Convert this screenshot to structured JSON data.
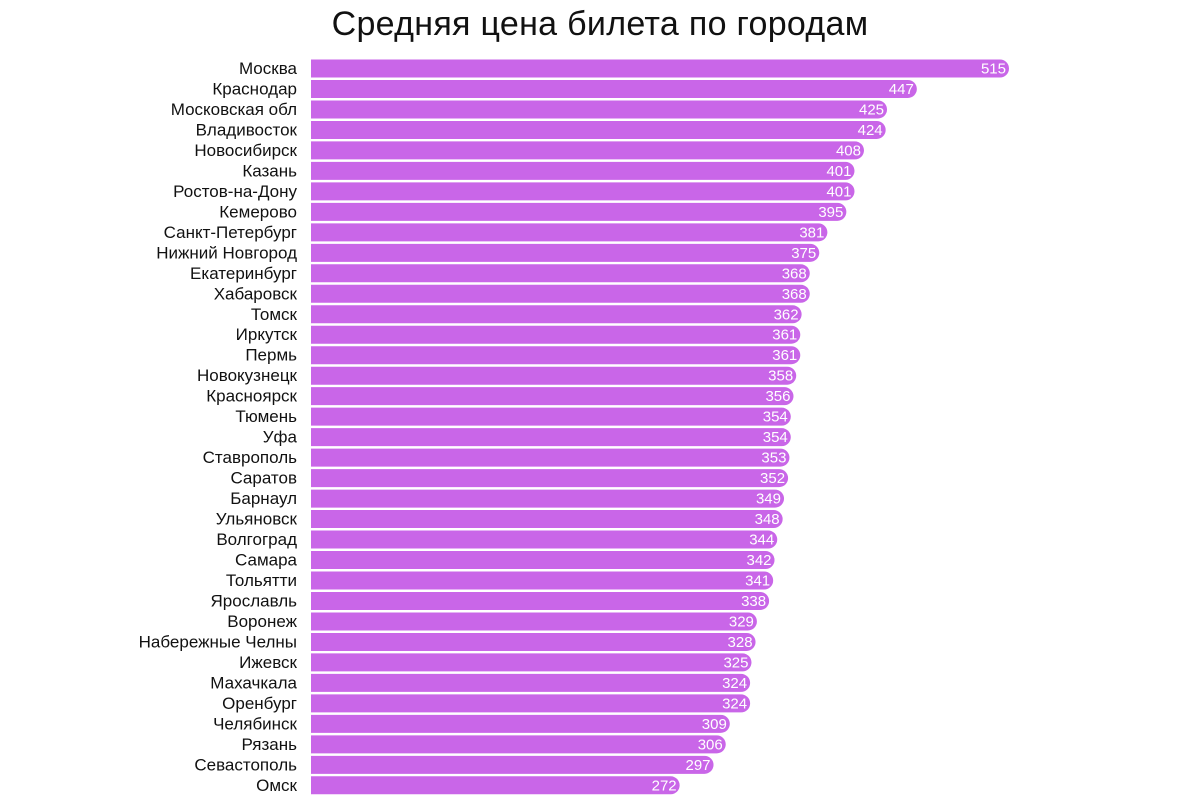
{
  "chart_data": {
    "type": "bar",
    "orientation": "horizontal",
    "title": "Средняя цена билета по городам",
    "bar_color": "#c966e8",
    "value_label_color": "#ffffff",
    "categories": [
      "Москва",
      "Краснодар",
      "Московская обл",
      "Владивосток",
      "Новосибирск",
      "Казань",
      "Ростов-на-Дону",
      "Кемерово",
      "Санкт-Петербург",
      "Нижний Новгород",
      "Екатеринбург",
      "Хабаровск",
      "Томск",
      "Иркутск",
      "Пермь",
      "Новокузнецк",
      "Красноярск",
      "Тюмень",
      "Уфа",
      "Ставрополь",
      "Саратов",
      "Барнаул",
      "Ульяновск",
      "Волгоград",
      "Самара",
      "Тольятти",
      "Ярославль",
      "Воронеж",
      "Набережные Челны",
      "Ижевск",
      "Махачкала",
      "Оренбург",
      "Челябинск",
      "Рязань",
      "Севастополь",
      "Омск"
    ],
    "values": [
      515,
      447,
      425,
      424,
      408,
      401,
      401,
      395,
      381,
      375,
      368,
      368,
      362,
      361,
      361,
      358,
      356,
      354,
      354,
      353,
      352,
      349,
      348,
      344,
      342,
      341,
      338,
      329,
      328,
      325,
      324,
      324,
      309,
      306,
      297,
      272
    ]
  }
}
